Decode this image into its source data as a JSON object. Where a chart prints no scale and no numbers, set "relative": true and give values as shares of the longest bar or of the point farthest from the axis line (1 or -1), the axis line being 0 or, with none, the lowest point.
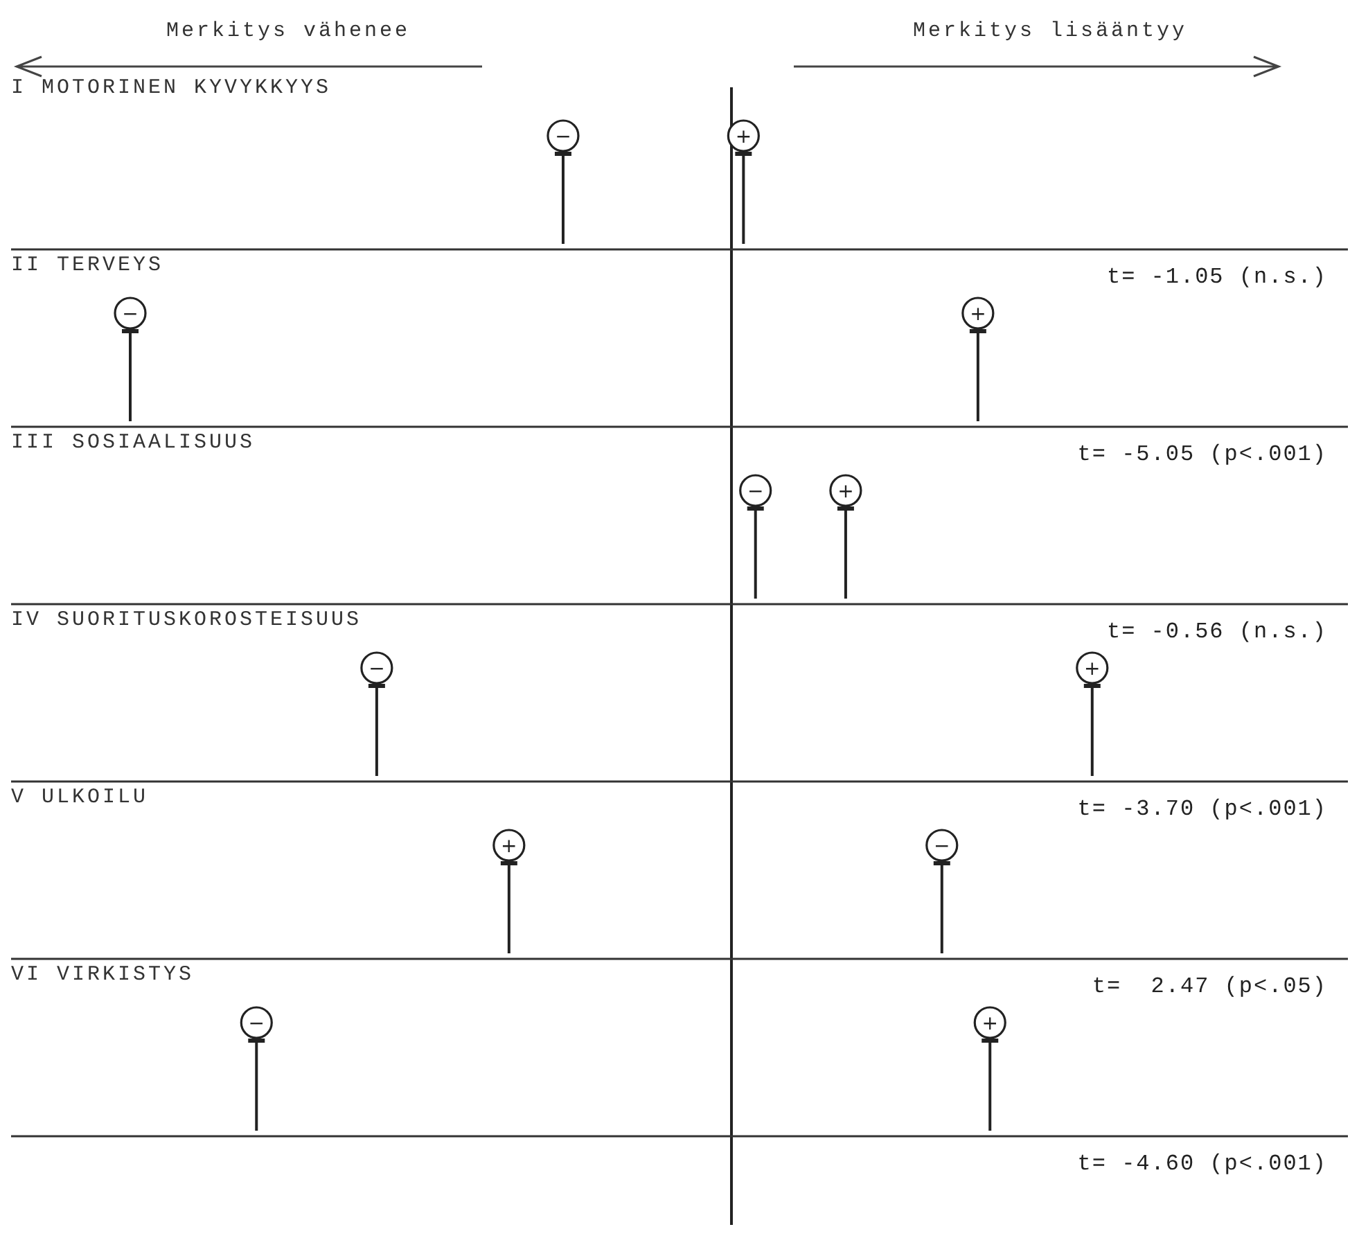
{
  "chart_data": {
    "type": "scatter",
    "orientation": "horizontal",
    "relative": true,
    "marker": "circle",
    "categories": [
      "I MOTORINEN KYVYKKYYS",
      "II TERVEYS",
      "III SOSIAALISUUS",
      "IV SUORITUSKOROSTEISUUS",
      "V ULKOILU",
      "VI VIRKISTYS"
    ],
    "series": [
      {
        "name": "−",
        "color": "#222222",
        "values": [
          -0.28,
          -1,
          0.04,
          -0.59,
          0.35,
          -0.79
        ]
      },
      {
        "name": "+",
        "color": "#222222",
        "values": [
          0.02,
          0.41,
          0.19,
          0.6,
          -0.37,
          0.43
        ]
      }
    ],
    "annotations": [
      "Merkitys vähenee",
      "Merkitys lisääntyy",
      "t= -1.05 (n.s.)",
      "t= -5.05 (p<.001)",
      "t= -0.56 (n.s.)",
      "t= -3.70 (p<.001)",
      "t=  2.47 (p<.05)",
      "t= -4.60 (p<.001)"
    ]
  }
}
